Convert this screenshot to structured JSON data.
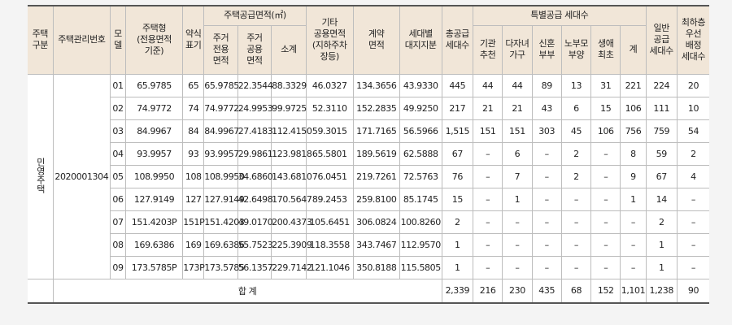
{
  "headers": {
    "type": "주택\n구분",
    "mgmt_no": "주택관리번호",
    "model": "모\n델",
    "housing_type": "주택형\n(전용면적\n기준)",
    "short_label": "약식\n표기",
    "supply_area_group": "주택공급면적(㎡)",
    "exclusive_area": "주거\n전용\n면적",
    "common_area": "주거\n공용\n면적",
    "subtotal": "소계",
    "other_common_area": "기타\n공용면적\n(지하주차\n장등)",
    "contract_area": "계약\n면적",
    "land_share": "세대별\n대지지분",
    "total_supply": "총공급\n세대수",
    "special_group": "특별공급 세대수",
    "institution": "기관\n추천",
    "multi_child": "다자녀\n가구",
    "newlywed": "신혼\n부부",
    "elderly": "노부모\n부양",
    "first_time": "생애\n최초",
    "special_total": "계",
    "general_supply": "일반\n공급\n세대수",
    "lowest_floor": "최하층\n우선\n배정\n세대수"
  },
  "housing_category": "민영주택",
  "management_number": "2020001304",
  "rows": [
    {
      "model": "01",
      "type": "65.9785",
      "abbr": "65",
      "excl": "65.9785",
      "common": "22.3544",
      "sub": "88.3329",
      "other": "46.0327",
      "contract": "134.3656",
      "land": "43.9330",
      "total": "445",
      "inst": "44",
      "multi": "44",
      "newly": "89",
      "elder": "13",
      "first": "31",
      "sp_total": "221",
      "general": "224",
      "lowest": "20"
    },
    {
      "model": "02",
      "type": "74.9772",
      "abbr": "74",
      "excl": "74.9772",
      "common": "24.9953",
      "sub": "99.9725",
      "other": "52.3110",
      "contract": "152.2835",
      "land": "49.9250",
      "total": "217",
      "inst": "21",
      "multi": "21",
      "newly": "43",
      "elder": "6",
      "first": "15",
      "sp_total": "106",
      "general": "111",
      "lowest": "10"
    },
    {
      "model": "03",
      "type": "84.9967",
      "abbr": "84",
      "excl": "84.9967",
      "common": "27.4183",
      "sub": "112.4150",
      "other": "59.3015",
      "contract": "171.7165",
      "land": "56.5966",
      "total": "1,515",
      "inst": "151",
      "multi": "151",
      "newly": "303",
      "elder": "45",
      "first": "106",
      "sp_total": "756",
      "general": "759",
      "lowest": "54"
    },
    {
      "model": "04",
      "type": "93.9957",
      "abbr": "93",
      "excl": "93.9957",
      "common": "29.9861",
      "sub": "123.9818",
      "other": "65.5801",
      "contract": "189.5619",
      "land": "62.5888",
      "total": "67",
      "inst": "–",
      "multi": "6",
      "newly": "–",
      "elder": "2",
      "first": "–",
      "sp_total": "8",
      "general": "59",
      "lowest": "2"
    },
    {
      "model": "05",
      "type": "108.9950",
      "abbr": "108",
      "excl": "108.9950",
      "common": "34.6860",
      "sub": "143.6810",
      "other": "76.0451",
      "contract": "219.7261",
      "land": "72.5763",
      "total": "76",
      "inst": "–",
      "multi": "7",
      "newly": "–",
      "elder": "2",
      "first": "–",
      "sp_total": "9",
      "general": "67",
      "lowest": "4"
    },
    {
      "model": "06",
      "type": "127.9149",
      "abbr": "127",
      "excl": "127.9149",
      "common": "42.6498",
      "sub": "170.5647",
      "other": "89.2453",
      "contract": "259.8100",
      "land": "85.1745",
      "total": "15",
      "inst": "–",
      "multi": "1",
      "newly": "–",
      "elder": "–",
      "first": "–",
      "sp_total": "1",
      "general": "14",
      "lowest": "–"
    },
    {
      "model": "07",
      "type": "151.4203P",
      "abbr": "151P",
      "excl": "151.4203",
      "common": "49.0170",
      "sub": "200.4373",
      "other": "105.6451",
      "contract": "306.0824",
      "land": "100.8260",
      "total": "2",
      "inst": "–",
      "multi": "–",
      "newly": "–",
      "elder": "–",
      "first": "–",
      "sp_total": "–",
      "general": "2",
      "lowest": "–"
    },
    {
      "model": "08",
      "type": "169.6386",
      "abbr": "169",
      "excl": "169.6386",
      "common": "55.7523",
      "sub": "225.3909",
      "other": "118.3558",
      "contract": "343.7467",
      "land": "112.9570",
      "total": "1",
      "inst": "–",
      "multi": "–",
      "newly": "–",
      "elder": "–",
      "first": "–",
      "sp_total": "–",
      "general": "1",
      "lowest": "–"
    },
    {
      "model": "09",
      "type": "173.5785P",
      "abbr": "173P",
      "excl": "173.5785",
      "common": "56.1357",
      "sub": "229.7142",
      "other": "121.1046",
      "contract": "350.8188",
      "land": "115.5805",
      "total": "1",
      "inst": "–",
      "multi": "–",
      "newly": "–",
      "elder": "–",
      "first": "–",
      "sp_total": "–",
      "general": "1",
      "lowest": "–"
    }
  ],
  "totals": {
    "label": "합 계",
    "total": "2,339",
    "inst": "216",
    "multi": "230",
    "newly": "435",
    "elder": "68",
    "first": "152",
    "sp_total": "1,101",
    "general": "1,238",
    "lowest": "90"
  }
}
